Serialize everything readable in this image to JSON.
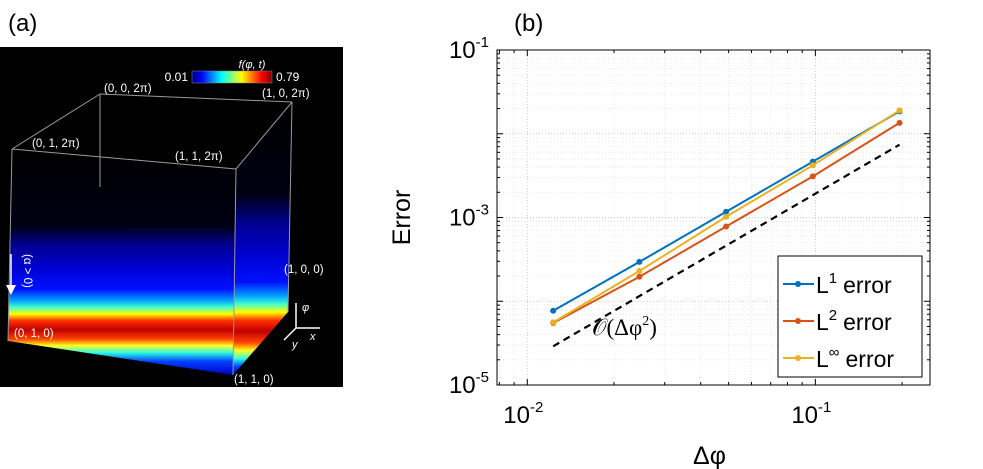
{
  "panel_a": {
    "label": "(a)",
    "colorbar": {
      "title": "f(φ, t)",
      "min_label": "0.01",
      "max_label": "0.79",
      "colors": [
        "#00007f",
        "#0000ff",
        "#00ffff",
        "#ffff00",
        "#ff0000",
        "#7f0000"
      ]
    },
    "vertices": {
      "v002pi": "(0, 0, 2π)",
      "v102pi": "(1, 0, 2π)",
      "v012pi": "(0, 1, 2π)",
      "v112pi": "(1, 1, 2π)",
      "v100": "(1, 0, 0)",
      "v010": "(0, 1, 0)",
      "v110": "(1, 1, 0)"
    },
    "arrow_label": "(α > 0)",
    "axes_labels": {
      "phi": "φ",
      "y": "y",
      "x": "x"
    }
  },
  "chart_data": {
    "type": "line",
    "panel_label": "(b)",
    "xscale": "log",
    "yscale": "log",
    "xlabel": "Δφ",
    "ylabel": "Error",
    "xlim": [
      0.00785,
      0.25
    ],
    "ylim": [
      1e-05,
      0.1
    ],
    "xticks": [
      {
        "value": 0.01,
        "base": "10",
        "exp": "-2"
      },
      {
        "value": 0.1,
        "base": "10",
        "exp": "-1"
      }
    ],
    "yticks": [
      {
        "value": 1e-05,
        "base": "10",
        "exp": "-5"
      },
      {
        "value": 0.001,
        "base": "10",
        "exp": "-3"
      },
      {
        "value": 0.1,
        "base": "10",
        "exp": "-1"
      }
    ],
    "x": [
      0.0123,
      0.0245,
      0.049,
      0.098,
      0.196
    ],
    "series": [
      {
        "name": "L1 error",
        "legend_base": "L",
        "legend_sup": "1",
        "legend_text": "error",
        "color": "#0072BD",
        "values": [
          7.7e-05,
          0.000295,
          0.00117,
          0.00465,
          0.0185
        ]
      },
      {
        "name": "L2 error",
        "legend_base": "L",
        "legend_sup": "2",
        "legend_text": "error",
        "color": "#D95319",
        "values": [
          5.5e-05,
          0.000196,
          0.00078,
          0.0031,
          0.0135
        ]
      },
      {
        "name": "L∞ error",
        "legend_base": "L",
        "legend_sup": "∞",
        "legend_text": "error",
        "color": "#EDB120",
        "values": [
          5.6e-05,
          0.00023,
          0.00102,
          0.0042,
          0.019
        ]
      }
    ],
    "reference": {
      "label_main": "𝒪(Δφ",
      "label_sup": "2",
      "label_end": ")",
      "x": [
        0.0123,
        0.196
      ],
      "values": [
        2.9e-05,
        0.0074
      ],
      "color": "#000000"
    },
    "legend_position": "bottom-right",
    "grid": true
  }
}
